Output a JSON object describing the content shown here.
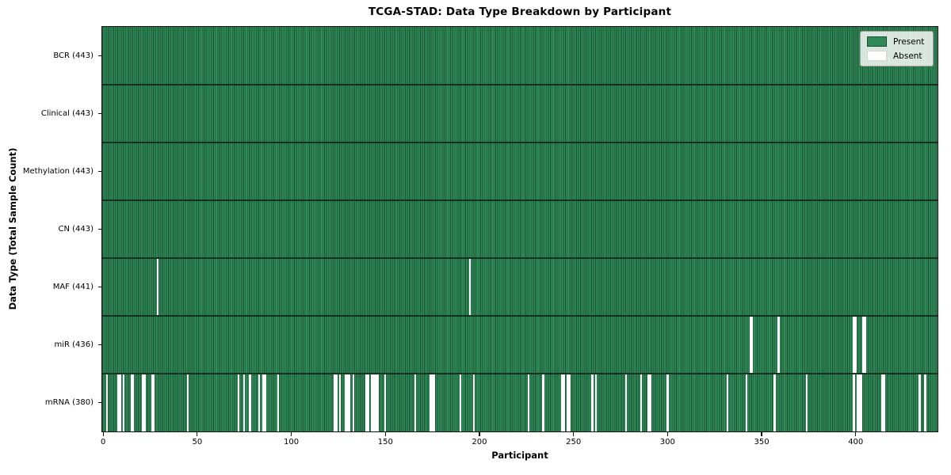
{
  "figure": {
    "title": "TCGA-STAD: Data Type Breakdown by Participant"
  },
  "chart_data": {
    "type": "heatmap",
    "title": "TCGA-STAD: Data Type Breakdown by Participant",
    "xlabel": "Participant",
    "ylabel": "Data Type (Total Sample Count)",
    "x_ticks": [
      0,
      50,
      100,
      150,
      200,
      250,
      300,
      350,
      400
    ],
    "x_range": [
      -0.5,
      443.5
    ],
    "n_participants": 443,
    "grid": false,
    "legend_position": "upper right",
    "legend": [
      {
        "label": "Present",
        "color": "#2e8b57"
      },
      {
        "label": "Absent",
        "color": "#ffffff"
      }
    ],
    "colors": {
      "present": "#2e8b57",
      "absent": "#ffffff",
      "cell_edge": "#1c5134",
      "row_separator": "#15311f"
    },
    "rows": [
      {
        "data_type": "BCR",
        "label": "BCR (443)",
        "total_samples": 443,
        "absent_participants": []
      },
      {
        "data_type": "Clinical",
        "label": "Clinical (443)",
        "total_samples": 443,
        "absent_participants": []
      },
      {
        "data_type": "Methylation",
        "label": "Methylation (443)",
        "total_samples": 443,
        "absent_participants": []
      },
      {
        "data_type": "CN",
        "label": "CN (443)",
        "total_samples": 443,
        "absent_participants": []
      },
      {
        "data_type": "MAF",
        "label": "MAF (441)",
        "total_samples": 441,
        "absent_participants": [
          29,
          195
        ]
      },
      {
        "data_type": "miR",
        "label": "miR (436)",
        "total_samples": 436,
        "absent_participants": [
          344,
          345,
          359,
          399,
          400,
          404,
          405
        ]
      },
      {
        "data_type": "mRNA",
        "label": "mRNA (380)",
        "total_samples": 380,
        "absent_participants": [
          2,
          8,
          9,
          11,
          15,
          16,
          21,
          22,
          26,
          27,
          45,
          72,
          75,
          78,
          83,
          85,
          86,
          93,
          123,
          124,
          126,
          129,
          130,
          131,
          133,
          140,
          141,
          143,
          144,
          145,
          146,
          150,
          166,
          174,
          175,
          176,
          190,
          197,
          226,
          234,
          244,
          245,
          247,
          248,
          260,
          262,
          278,
          286,
          290,
          291,
          300,
          332,
          342,
          357,
          374,
          399,
          401,
          402,
          403,
          414,
          415,
          434,
          437
        ]
      }
    ]
  }
}
